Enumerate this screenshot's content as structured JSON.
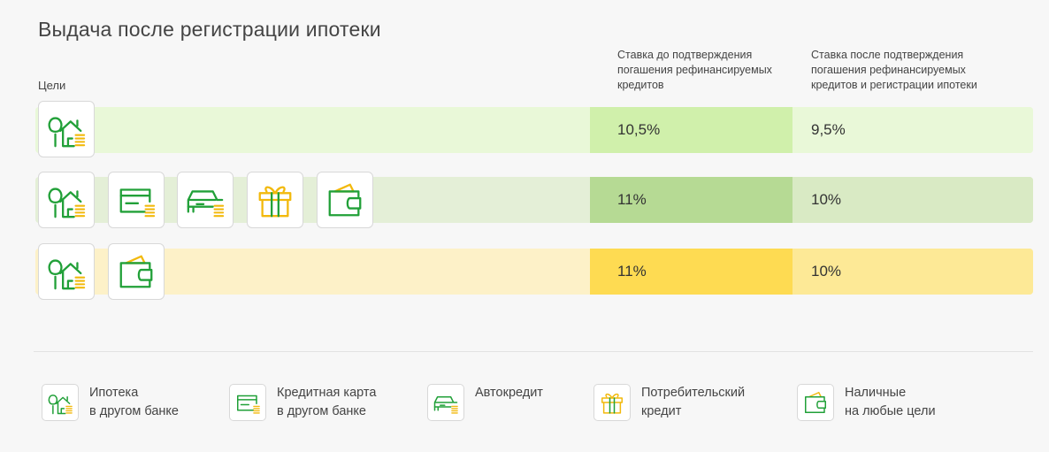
{
  "title": "Выдача после регистрации ипотеки",
  "goals_label": "Цели",
  "headers": {
    "before": [
      "Ставка до подтверждения",
      "погашения рефинансируемых",
      "кредитов"
    ],
    "after": [
      "Ставка после подтверждения",
      "погашения рефинансируемых",
      "кредитов и регистрации ипотеки"
    ]
  },
  "rows": [
    {
      "rate_before": "10,5%",
      "rate_after": "9,5%",
      "icons": [
        "house-icon"
      ]
    },
    {
      "rate_before": "11%",
      "rate_after": "10%",
      "icons": [
        "house-icon",
        "credit-card-icon",
        "car-icon",
        "gift-icon",
        "wallet-icon"
      ]
    },
    {
      "rate_before": "11%",
      "rate_after": "10%",
      "icons": [
        "house-icon",
        "wallet-icon"
      ]
    }
  ],
  "legend": [
    {
      "icon": "house-icon",
      "line1": "Ипотека",
      "line2": "в другом банке"
    },
    {
      "icon": "credit-card-icon",
      "line1": "Кредитная карта",
      "line2": "в другом банке"
    },
    {
      "icon": "car-icon",
      "line1": "Автокредит",
      "line2": ""
    },
    {
      "icon": "gift-icon",
      "line1": "Потребительский",
      "line2": "кредит"
    },
    {
      "icon": "wallet-icon",
      "line1": "Наличные",
      "line2": "на любые цели"
    }
  ],
  "colors": {
    "icon_green": "#21a038",
    "coin_yellow": "#f2b90c"
  }
}
